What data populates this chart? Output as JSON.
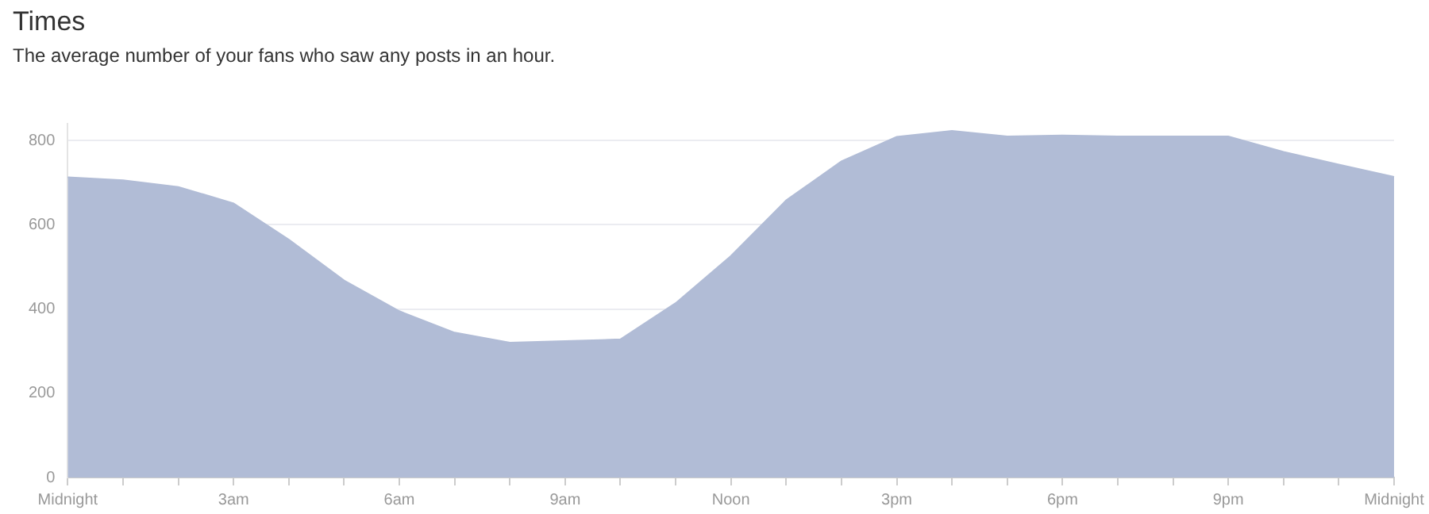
{
  "chart_data": {
    "type": "area",
    "title": "Times",
    "subtitle": "The average number of your fans who saw any posts in an hour.",
    "categories": [
      "Midnight",
      null,
      null,
      "3am",
      null,
      null,
      "6am",
      null,
      null,
      "9am",
      null,
      null,
      "Noon",
      null,
      null,
      "3pm",
      null,
      null,
      "6pm",
      null,
      null,
      "9pm",
      null,
      null,
      "Midnight"
    ],
    "values": [
      713,
      706,
      690,
      651,
      565,
      468,
      395,
      344,
      320,
      324,
      328,
      414,
      526,
      658,
      751,
      809,
      823,
      810,
      812,
      810,
      810,
      810,
      773,
      743,
      714
    ],
    "color": "#b1bcd6",
    "ylim": [
      0,
      840
    ],
    "yticks": [
      0,
      200,
      400,
      600,
      800
    ],
    "grid": "y",
    "legend": false,
    "marker": "none"
  }
}
